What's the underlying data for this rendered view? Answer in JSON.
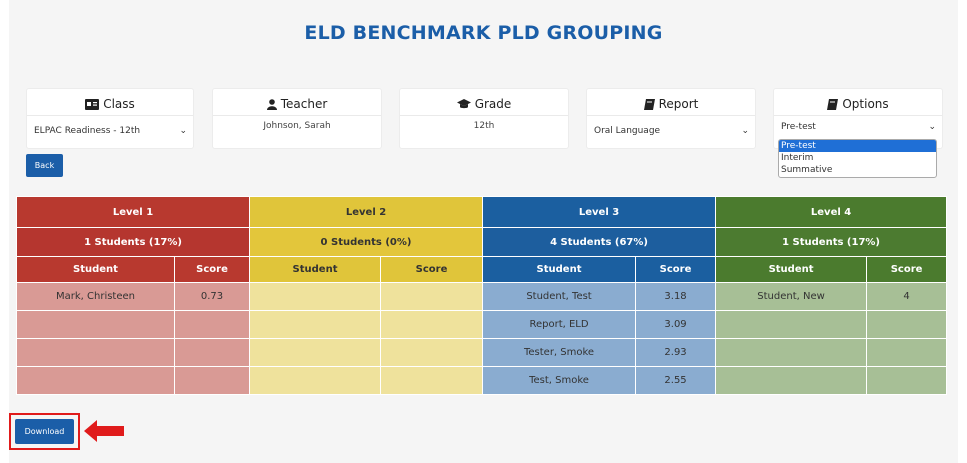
{
  "page": {
    "title": "ELD BENCHMARK PLD GROUPING"
  },
  "cards": {
    "class": {
      "label": "Class",
      "value": "ELPAC Readiness - 12th"
    },
    "teacher": {
      "label": "Teacher",
      "value": "Johnson, Sarah"
    },
    "grade": {
      "label": "Grade",
      "value": "12th"
    },
    "report": {
      "label": "Report",
      "value": "Oral Language"
    },
    "options": {
      "label": "Options",
      "value": "Pre-test",
      "dropdown": [
        "Pre-test",
        "Interim",
        "Summative"
      ]
    }
  },
  "buttons": {
    "back": "Back",
    "download": "Download"
  },
  "levels": [
    {
      "name": "Level 1",
      "count": "1 Students (17%)",
      "color": "#b8392f"
    },
    {
      "name": "Level 2",
      "count": "0 Students (0%)",
      "color": "#e0c53a"
    },
    {
      "name": "Level 3",
      "count": "4 Students (67%)",
      "color": "#1b5fa0"
    },
    {
      "name": "Level 4",
      "count": "1 Students (17%)",
      "color": "#4b7b2e"
    }
  ],
  "columns": {
    "student": "Student",
    "score": "Score"
  },
  "rows": [
    {
      "l1s": "Mark, Christeen",
      "l1c": "0.73",
      "l2s": "",
      "l2c": "",
      "l3s": "Student, Test",
      "l3c": "3.18",
      "l4s": "Student, New",
      "l4c": "4"
    },
    {
      "l1s": "",
      "l1c": "",
      "l2s": "",
      "l2c": "",
      "l3s": "Report, ELD",
      "l3c": "3.09",
      "l4s": "",
      "l4c": ""
    },
    {
      "l1s": "",
      "l1c": "",
      "l2s": "",
      "l2c": "",
      "l3s": "Tester, Smoke",
      "l3c": "2.93",
      "l4s": "",
      "l4c": ""
    },
    {
      "l1s": "",
      "l1c": "",
      "l2s": "",
      "l2c": "",
      "l3s": "Test, Smoke",
      "l3c": "2.55",
      "l4s": "",
      "l4c": ""
    }
  ]
}
